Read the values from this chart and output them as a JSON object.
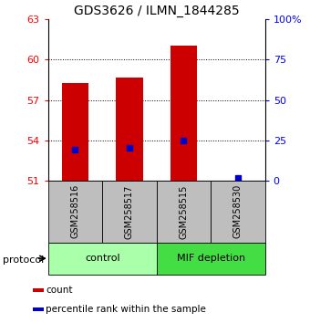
{
  "title": "GDS3626 / ILMN_1844285",
  "samples": [
    "GSM258516",
    "GSM258517",
    "GSM258515",
    "GSM258530"
  ],
  "count_values": [
    58.3,
    58.65,
    61.05,
    51.0
  ],
  "percentile_values": [
    53.35,
    53.45,
    54.0,
    51.22
  ],
  "ylim_left": [
    51,
    63
  ],
  "yticks_left": [
    51,
    54,
    57,
    60,
    63
  ],
  "ylim_right": [
    0,
    100
  ],
  "yticks_right": [
    0,
    25,
    50,
    75,
    100
  ],
  "bar_width": 0.5,
  "bar_color": "#CC0000",
  "percentile_color": "#0000CC",
  "label_area_color": "#BEBEBE",
  "group_control_color": "#AAFFAA",
  "group_mif_color": "#44DD44",
  "group_ranges": [
    [
      0,
      2
    ],
    [
      2,
      4
    ]
  ],
  "group_names": [
    "control",
    "MIF depletion"
  ],
  "legend_items": [
    {
      "label": "count",
      "color": "#CC0000"
    },
    {
      "label": "percentile rank within the sample",
      "color": "#0000CC"
    }
  ]
}
